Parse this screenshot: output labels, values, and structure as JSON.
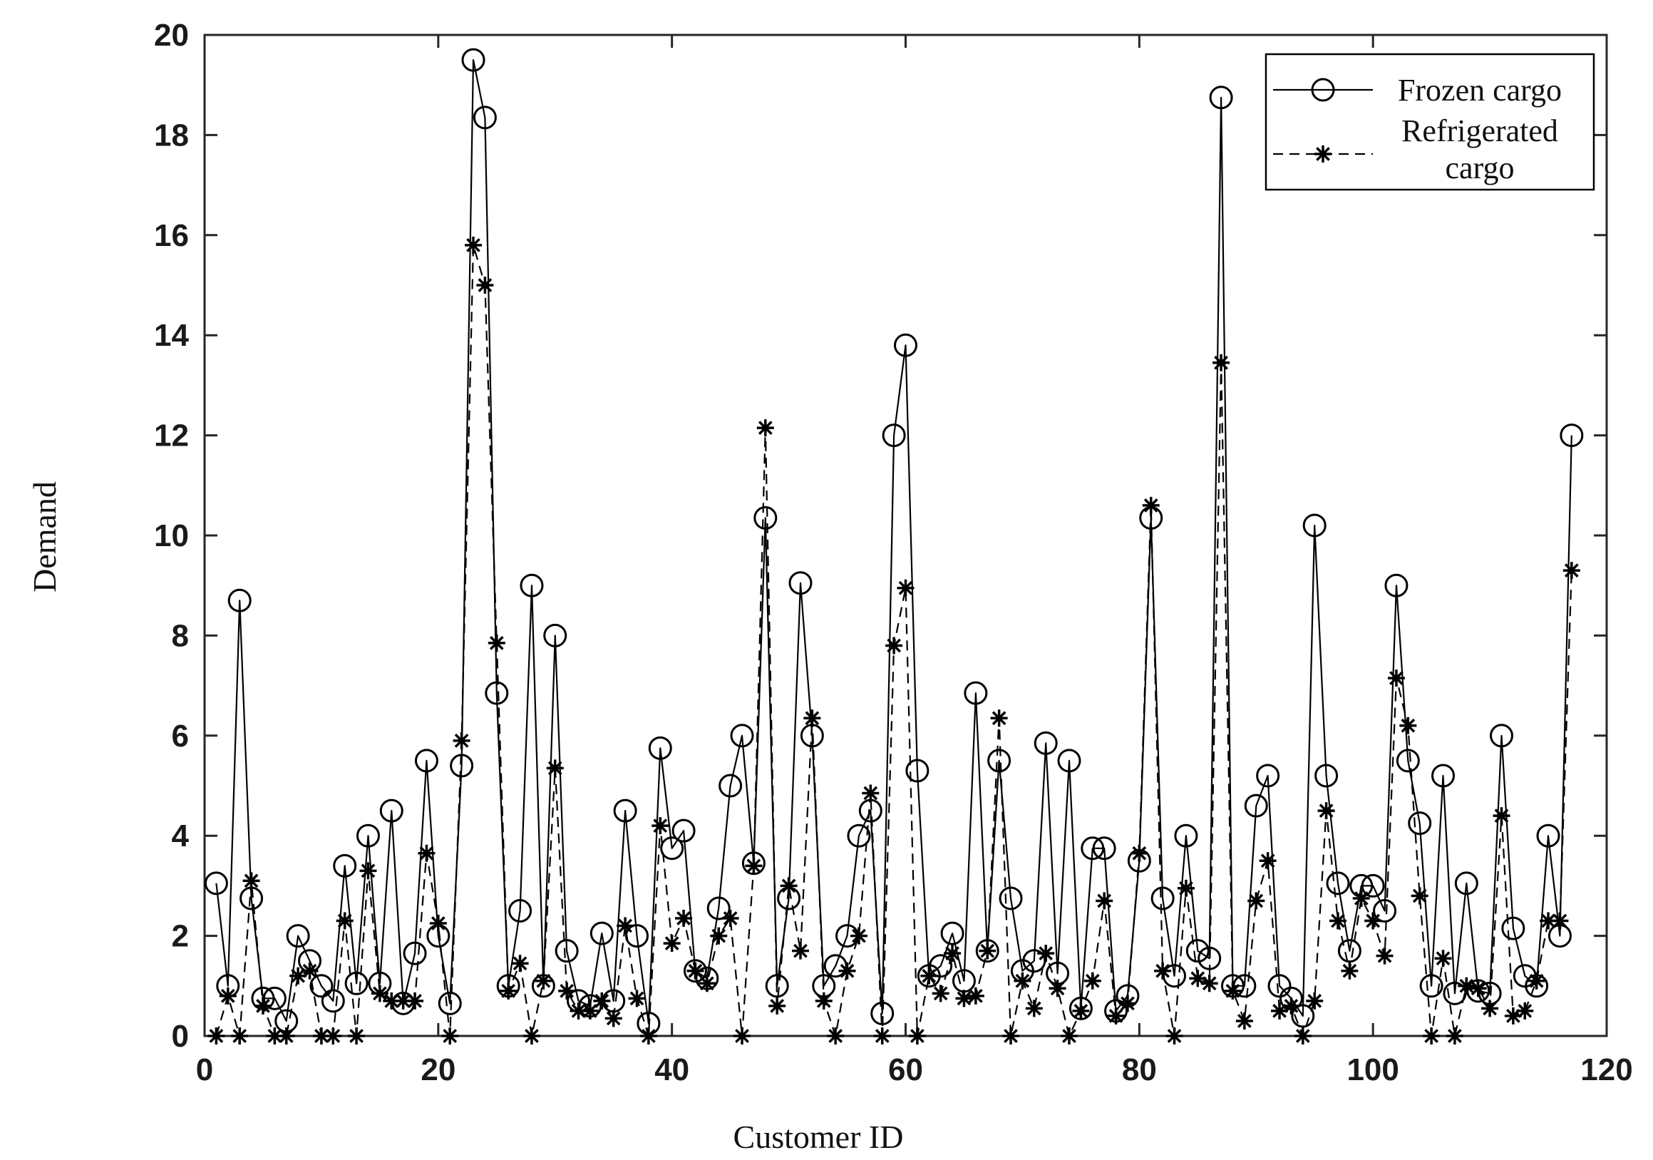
{
  "chart_data": {
    "type": "line",
    "xlabel": "Customer ID",
    "ylabel": "Demand",
    "xlim": [
      0,
      120
    ],
    "ylim": [
      0,
      20
    ],
    "xticks": [
      "0",
      "20",
      "40",
      "60",
      "80",
      "100",
      "120"
    ],
    "yticks": [
      "0",
      "2",
      "4",
      "6",
      "8",
      "10",
      "12",
      "14",
      "16",
      "18",
      "20"
    ],
    "grid": false,
    "legend_position": "top-right",
    "x": [
      1,
      2,
      3,
      4,
      5,
      6,
      7,
      8,
      9,
      10,
      11,
      12,
      13,
      14,
      15,
      16,
      17,
      18,
      19,
      20,
      21,
      22,
      23,
      24,
      25,
      26,
      27,
      28,
      29,
      30,
      31,
      32,
      33,
      34,
      35,
      36,
      37,
      38,
      39,
      40,
      41,
      42,
      43,
      44,
      45,
      46,
      47,
      48,
      49,
      50,
      51,
      52,
      53,
      54,
      55,
      56,
      57,
      58,
      59,
      60,
      61,
      62,
      63,
      64,
      65,
      66,
      67,
      68,
      69,
      70,
      71,
      72,
      73,
      74,
      75,
      76,
      77,
      78,
      79,
      80,
      81,
      82,
      83,
      84,
      85,
      86,
      87,
      88,
      89,
      90,
      91,
      92,
      93,
      94,
      95,
      96,
      97,
      98,
      99,
      100,
      101,
      102,
      103,
      104,
      105,
      106,
      107,
      108,
      109,
      110,
      111,
      112,
      113,
      114,
      115,
      116,
      117
    ],
    "series": [
      {
        "name": "Frozen cargo",
        "color": "#000000",
        "line_style": "solid",
        "marker": "circle",
        "values": [
          3.05,
          1.0,
          8.7,
          2.75,
          0.75,
          0.75,
          0.3,
          2.0,
          1.5,
          1.0,
          0.7,
          3.4,
          1.05,
          4.0,
          1.05,
          4.5,
          0.65,
          1.65,
          5.5,
          2.0,
          0.65,
          5.4,
          19.5,
          18.35,
          6.85,
          1.0,
          2.5,
          9.0,
          1.0,
          8.0,
          1.7,
          0.7,
          0.6,
          2.05,
          0.7,
          4.5,
          2.0,
          0.25,
          5.75,
          3.75,
          4.1,
          1.3,
          1.15,
          2.55,
          5.0,
          6.0,
          3.45,
          10.35,
          1.0,
          2.75,
          9.05,
          6.0,
          1.0,
          1.4,
          2.0,
          4.0,
          4.5,
          0.45,
          12.0,
          13.8,
          5.3,
          1.2,
          1.4,
          2.05,
          1.1,
          6.85,
          1.7,
          5.5,
          2.75,
          1.3,
          1.5,
          5.85,
          1.25,
          5.5,
          0.55,
          3.75,
          3.75,
          0.5,
          0.8,
          3.5,
          10.35,
          2.75,
          1.2,
          4.0,
          1.7,
          1.55,
          18.75,
          1.0,
          1.0,
          4.6,
          5.2,
          1.0,
          0.75,
          0.4,
          10.2,
          5.2,
          3.05,
          1.7,
          3.0,
          3.0,
          2.5,
          9.0,
          5.5,
          4.25,
          1.0,
          5.2,
          0.85,
          3.05,
          0.9,
          0.85,
          6.0,
          2.15,
          1.2,
          1.0,
          4.0,
          2.0,
          12.0
        ]
      },
      {
        "name": "Refrigerated cargo",
        "color": "#000000",
        "line_style": "dashed",
        "marker": "asterisk",
        "values": [
          0,
          0.8,
          0,
          3.1,
          0.6,
          0,
          0,
          1.2,
          1.3,
          0,
          0,
          2.3,
          0,
          3.3,
          0.85,
          0.7,
          0.7,
          0.7,
          3.65,
          2.25,
          0,
          5.9,
          15.8,
          15.0,
          7.85,
          0.9,
          1.45,
          0,
          1.1,
          5.35,
          0.9,
          0.5,
          0.5,
          0.7,
          0.35,
          2.2,
          0.75,
          0,
          4.2,
          1.85,
          2.35,
          1.3,
          1.05,
          2.0,
          2.35,
          0,
          3.4,
          12.15,
          0.6,
          3.0,
          1.7,
          6.35,
          0.7,
          0,
          1.3,
          2.0,
          4.85,
          0,
          7.8,
          8.95,
          0,
          1.2,
          0.85,
          1.65,
          0.75,
          0.8,
          1.7,
          6.35,
          0,
          1.1,
          0.55,
          1.65,
          0.95,
          0,
          0.5,
          1.1,
          2.7,
          0.4,
          0.65,
          3.65,
          10.6,
          1.3,
          0,
          2.95,
          1.15,
          1.05,
          13.45,
          0.9,
          0.3,
          2.7,
          3.5,
          0.5,
          0.6,
          0,
          0.7,
          4.5,
          2.3,
          1.3,
          2.75,
          2.3,
          1.6,
          7.15,
          6.2,
          2.8,
          0,
          1.55,
          0,
          1.0,
          0.95,
          0.55,
          4.4,
          0.4,
          0.5,
          1.1,
          2.3,
          2.3,
          9.3
        ]
      }
    ]
  }
}
